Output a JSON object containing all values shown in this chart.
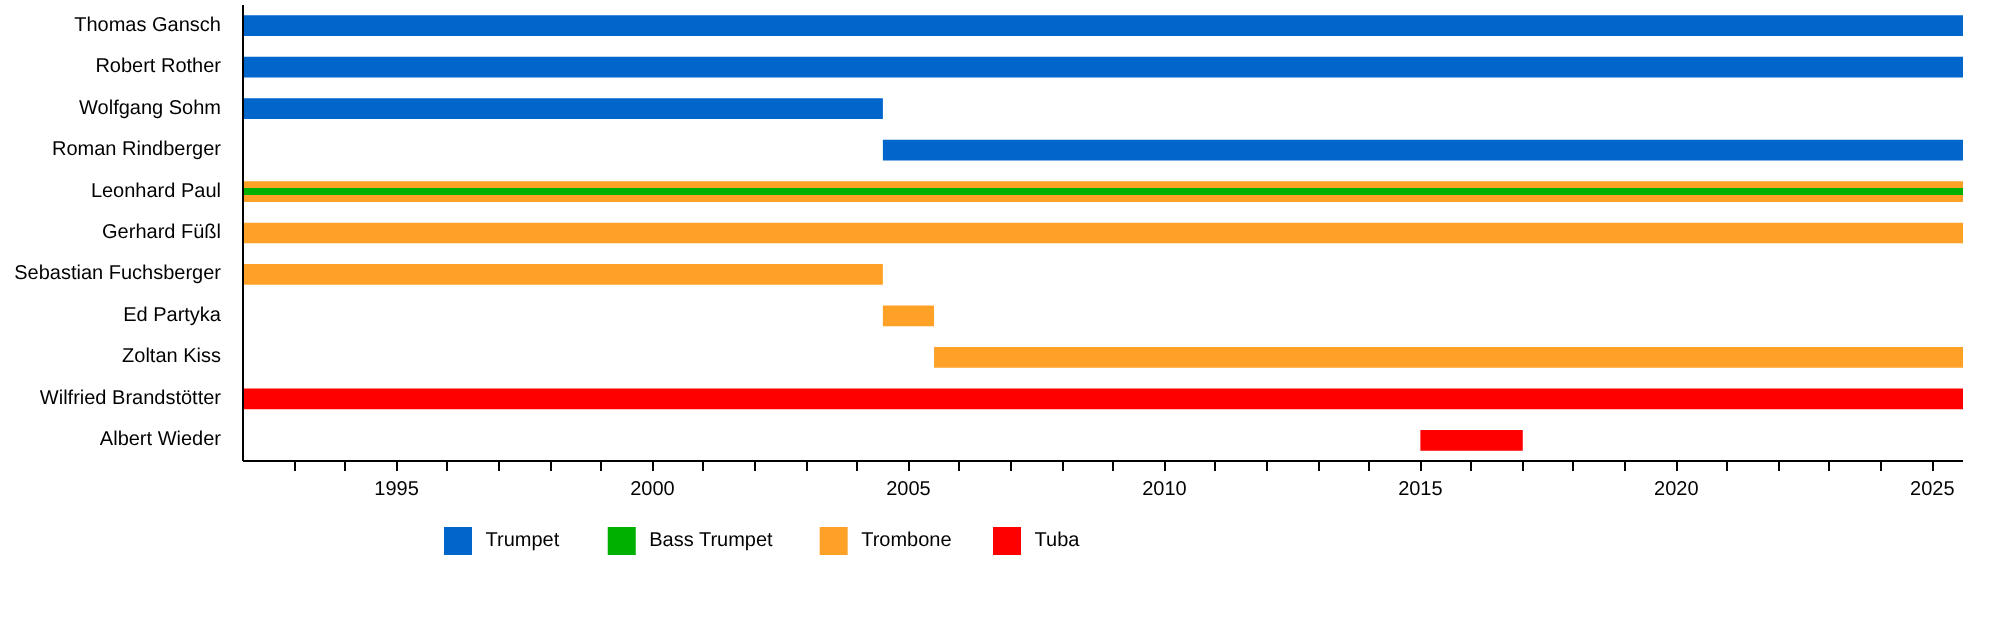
{
  "chart_data": {
    "type": "bar",
    "orientation": "horizontal",
    "categories": [
      "Thomas Gansch",
      "Robert Rother",
      "Wolfgang Sohm",
      "Roman Rindberger",
      "Leonhard Paul",
      "Gerhard Füßl",
      "Sebastian Fuchsberger",
      "Ed Partyka",
      "Zoltan Kiss",
      "Wilfried Brandstötter",
      "Albert Wieder"
    ],
    "series": [
      {
        "name": "Trumpet",
        "color": "#0066cc",
        "base": [
          1992,
          1992,
          1992,
          2004.5,
          null,
          null,
          null,
          null,
          null,
          null,
          null
        ],
        "values": [
          33.6,
          33.6,
          12.5,
          21.1,
          null,
          null,
          null,
          null,
          null,
          null,
          null
        ]
      },
      {
        "name": "Bass Trumpet",
        "color": "#00b000",
        "base": [
          null,
          null,
          null,
          null,
          1992,
          null,
          null,
          null,
          null,
          null,
          null
        ],
        "values": [
          null,
          null,
          null,
          null,
          33.6,
          null,
          null,
          null,
          null,
          null,
          null
        ]
      },
      {
        "name": "Trombone",
        "color": "#ffa126",
        "base": [
          null,
          null,
          null,
          null,
          1992,
          1992,
          1992,
          2004.5,
          2005.5,
          null,
          null
        ],
        "values": [
          null,
          null,
          null,
          null,
          33.6,
          33.6,
          12.5,
          1,
          20.1,
          null,
          null
        ]
      },
      {
        "name": "Tuba",
        "color": "#ff0000",
        "base": [
          null,
          null,
          null,
          null,
          null,
          null,
          null,
          null,
          null,
          1992,
          2015
        ],
        "values": [
          null,
          null,
          null,
          null,
          null,
          null,
          null,
          null,
          null,
          33.6,
          2
        ]
      }
    ],
    "xlim": [
      1992,
      2025.6
    ],
    "xticks": [
      {
        "value": 1993,
        "label": null
      },
      {
        "value": 1994,
        "label": null
      },
      1995,
      {
        "value": 1996,
        "label": null
      },
      {
        "value": 1997,
        "label": null
      },
      {
        "value": 1998,
        "label": null
      },
      {
        "value": 1999,
        "label": null
      },
      2000,
      {
        "value": 2001,
        "label": null
      },
      {
        "value": 2002,
        "label": null
      },
      {
        "value": 2003,
        "label": null
      },
      {
        "value": 2004,
        "label": null
      },
      2005,
      {
        "value": 2006,
        "label": null
      },
      {
        "value": 2007,
        "label": null
      },
      {
        "value": 2008,
        "label": null
      },
      {
        "value": 2009,
        "label": null
      },
      2010,
      {
        "value": 2011,
        "label": null
      },
      {
        "value": 2012,
        "label": null
      },
      {
        "value": 2013,
        "label": null
      },
      {
        "value": 2014,
        "label": null
      },
      2015,
      {
        "value": 2016,
        "label": null
      },
      {
        "value": 2017,
        "label": null
      },
      {
        "value": 2018,
        "label": null
      },
      {
        "value": 2019,
        "label": null
      },
      2020,
      {
        "value": 2021,
        "label": null
      },
      {
        "value": 2022,
        "label": null
      },
      {
        "value": 2023,
        "label": null
      },
      {
        "value": 2024,
        "label": null
      },
      2025
    ],
    "legend": "bottom"
  }
}
